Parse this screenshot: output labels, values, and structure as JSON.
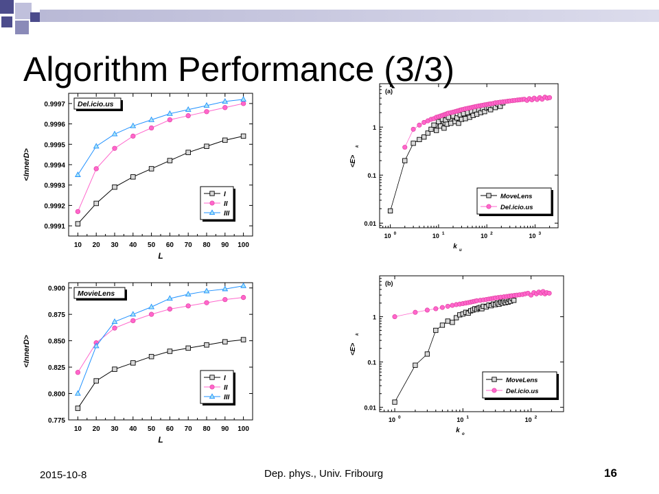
{
  "slide": {
    "title": "Algorithm Performance (3/3)",
    "footer_date": "2015-10-8",
    "footer_center": "Dep. phys.,  Univ. Fribourg",
    "page_number": "16"
  },
  "colors": {
    "header_band": "#a7a7c9",
    "square_dark": "#4c4c8c",
    "square_mid": "#8a8ab8",
    "square_light": "#c0c0dc",
    "black_series": "#000000",
    "pink_series": "#ff66cc",
    "blue_series": "#1e90ff",
    "cyan_fill": "#a8e4f4"
  },
  "chart_data": [
    {
      "type": "line",
      "panel": "top-left",
      "title": "Del.icio.us",
      "xlabel": "L",
      "ylabel": "<InnerD>",
      "x": [
        10,
        20,
        30,
        40,
        50,
        60,
        70,
        80,
        90,
        100
      ],
      "xlim": [
        5,
        105
      ],
      "ylim": [
        0.99905,
        0.99975
      ],
      "xticks": [
        10,
        20,
        30,
        40,
        50,
        60,
        70,
        80,
        90,
        100
      ],
      "yticks": [
        0.9991,
        0.9992,
        0.9993,
        0.9994,
        0.9995,
        0.9996,
        0.9997
      ],
      "ytick_labels": [
        "0.9991",
        "0.9992",
        "0.9993",
        "0.9994",
        "0.9995",
        "0.9996",
        "0.9997"
      ],
      "legend": "bottom-right",
      "series": [
        {
          "name": "I",
          "marker": "square",
          "values": [
            0.99911,
            0.99921,
            0.99929,
            0.99934,
            0.99938,
            0.99942,
            0.99946,
            0.99949,
            0.99952,
            0.99954
          ]
        },
        {
          "name": "II",
          "marker": "circle",
          "values": [
            0.99917,
            0.99938,
            0.99948,
            0.99954,
            0.99958,
            0.99962,
            0.99964,
            0.99966,
            0.99968,
            0.9997
          ]
        },
        {
          "name": "III",
          "marker": "triangle",
          "values": [
            0.99935,
            0.99949,
            0.99955,
            0.99959,
            0.99962,
            0.99965,
            0.99967,
            0.99969,
            0.99971,
            0.99972
          ]
        }
      ]
    },
    {
      "type": "line",
      "panel": "bottom-left",
      "title": "MovieLens",
      "xlabel": "L",
      "ylabel": "<InnerD>",
      "x": [
        10,
        20,
        30,
        40,
        50,
        60,
        70,
        80,
        90,
        100
      ],
      "xlim": [
        5,
        105
      ],
      "ylim": [
        0.775,
        0.905
      ],
      "xticks": [
        10,
        20,
        30,
        40,
        50,
        60,
        70,
        80,
        90,
        100
      ],
      "yticks": [
        0.775,
        0.8,
        0.825,
        0.85,
        0.875,
        0.9
      ],
      "ytick_labels": [
        "0.775",
        "0.800",
        "0.825",
        "0.850",
        "0.875",
        "0.900"
      ],
      "legend": "bottom-right",
      "series": [
        {
          "name": "I",
          "marker": "square",
          "values": [
            0.786,
            0.812,
            0.823,
            0.829,
            0.835,
            0.84,
            0.843,
            0.846,
            0.849,
            0.851
          ]
        },
        {
          "name": "II",
          "marker": "circle",
          "values": [
            0.82,
            0.848,
            0.862,
            0.869,
            0.875,
            0.88,
            0.883,
            0.886,
            0.889,
            0.891
          ]
        },
        {
          "name": "III",
          "marker": "triangle",
          "values": [
            0.8,
            0.845,
            0.868,
            0.875,
            0.882,
            0.89,
            0.894,
            0.897,
            0.899,
            0.902
          ]
        }
      ]
    },
    {
      "type": "scatter",
      "panel": "top-right",
      "title": "(a)",
      "xlabel": "k",
      "xlabel_sub": "u",
      "ylabel": "<E>",
      "ylabel_sub": "k",
      "xscale": "log",
      "yscale": "log",
      "xlim": [
        0.6,
        3000
      ],
      "ylim": [
        0.008,
        8
      ],
      "xtick_exponents": [
        0,
        1,
        2,
        3
      ],
      "yticks": [
        0.01,
        0.1,
        1
      ],
      "ytick_labels": [
        "0.01",
        "0.1",
        "1"
      ],
      "legend": "bottom-right",
      "series": [
        {
          "name": "MoveLens",
          "marker": "square",
          "points": [
            [
              1,
              0.018
            ],
            [
              2,
              0.2
            ],
            [
              3,
              0.46
            ],
            [
              4,
              0.55
            ],
            [
              5,
              0.62
            ],
            [
              6,
              0.75
            ],
            [
              7,
              0.9
            ],
            [
              8,
              1.1
            ],
            [
              9,
              0.85
            ],
            [
              10,
              1.3
            ],
            [
              11,
              1.05
            ],
            [
              12,
              1.45
            ],
            [
              13,
              0.95
            ],
            [
              14,
              1.4
            ],
            [
              15,
              1.15
            ],
            [
              16,
              1.6
            ],
            [
              18,
              1.2
            ],
            [
              20,
              1.7
            ],
            [
              22,
              1.3
            ],
            [
              24,
              1.55
            ],
            [
              26,
              1.2
            ],
            [
              28,
              1.8
            ],
            [
              30,
              1.45
            ],
            [
              33,
              1.9
            ],
            [
              36,
              1.5
            ],
            [
              40,
              2.0
            ],
            [
              44,
              1.6
            ],
            [
              48,
              2.1
            ],
            [
              52,
              1.75
            ],
            [
              57,
              2.2
            ],
            [
              62,
              1.85
            ],
            [
              68,
              2.3
            ],
            [
              75,
              2.0
            ],
            [
              82,
              2.4
            ],
            [
              90,
              2.1
            ],
            [
              100,
              2.5
            ],
            [
              110,
              2.6
            ],
            [
              120,
              2.3
            ],
            [
              135,
              2.8
            ],
            [
              150,
              2.55
            ],
            [
              170,
              3.0
            ],
            [
              190,
              2.7
            ],
            [
              215,
              3.2
            ]
          ]
        },
        {
          "name": "Del.icio.us",
          "marker": "circle",
          "points": [
            [
              2,
              0.38
            ],
            [
              3,
              0.9
            ],
            [
              4,
              1.1
            ],
            [
              5,
              1.25
            ],
            [
              6,
              1.35
            ],
            [
              7,
              1.45
            ],
            [
              8,
              1.5
            ],
            [
              9,
              1.6
            ],
            [
              10,
              1.65
            ],
            [
              11,
              1.7
            ],
            [
              12,
              1.75
            ],
            [
              13,
              1.8
            ],
            [
              14,
              1.85
            ],
            [
              15,
              1.9
            ],
            [
              16,
              1.95
            ],
            [
              18,
              2.0
            ],
            [
              20,
              2.05
            ],
            [
              22,
              2.1
            ],
            [
              24,
              2.15
            ],
            [
              26,
              2.2
            ],
            [
              28,
              2.25
            ],
            [
              30,
              2.3
            ],
            [
              33,
              2.35
            ],
            [
              36,
              2.4
            ],
            [
              40,
              2.45
            ],
            [
              44,
              2.5
            ],
            [
              48,
              2.55
            ],
            [
              52,
              2.6
            ],
            [
              57,
              2.65
            ],
            [
              62,
              2.7
            ],
            [
              68,
              2.75
            ],
            [
              75,
              2.8
            ],
            [
              82,
              2.85
            ],
            [
              90,
              2.9
            ],
            [
              100,
              2.95
            ],
            [
              110,
              3.0
            ],
            [
              120,
              3.05
            ],
            [
              135,
              3.1
            ],
            [
              150,
              3.2
            ],
            [
              170,
              3.25
            ],
            [
              190,
              3.3
            ],
            [
              215,
              3.35
            ],
            [
              240,
              3.4
            ],
            [
              270,
              3.45
            ],
            [
              300,
              3.5
            ],
            [
              340,
              3.55
            ],
            [
              380,
              3.6
            ],
            [
              430,
              3.65
            ],
            [
              480,
              3.7
            ],
            [
              540,
              3.75
            ],
            [
              600,
              3.8
            ],
            [
              680,
              3.6
            ],
            [
              760,
              3.9
            ],
            [
              860,
              3.7
            ],
            [
              960,
              4.0
            ],
            [
              1100,
              3.75
            ],
            [
              1250,
              4.1
            ],
            [
              1400,
              3.8
            ],
            [
              1600,
              4.2
            ],
            [
              1800,
              4.0
            ],
            [
              2000,
              4.1
            ]
          ]
        }
      ]
    },
    {
      "type": "scatter",
      "panel": "bottom-right",
      "title": "(b)",
      "xlabel": "k",
      "xlabel_sub": "o",
      "ylabel": "<E>",
      "ylabel_sub": "k",
      "xscale": "log",
      "yscale": "log",
      "xlim": [
        0.6,
        300
      ],
      "ylim": [
        0.008,
        8
      ],
      "xtick_exponents": [
        0,
        1,
        2
      ],
      "yticks": [
        0.01,
        0.1,
        1
      ],
      "ytick_labels": [
        "0.01",
        "0.1",
        "1"
      ],
      "legend": "bottom-right",
      "series": [
        {
          "name": "MoveLens",
          "marker": "square",
          "points": [
            [
              1,
              0.013
            ],
            [
              2,
              0.085
            ],
            [
              3,
              0.15
            ],
            [
              4,
              0.5
            ],
            [
              5,
              0.65
            ],
            [
              6,
              0.8
            ],
            [
              7,
              0.75
            ],
            [
              8,
              0.95
            ],
            [
              9,
              1.1
            ],
            [
              10,
              1.15
            ],
            [
              11,
              1.25
            ],
            [
              12,
              1.2
            ],
            [
              13,
              1.35
            ],
            [
              14,
              1.4
            ],
            [
              15,
              1.5
            ],
            [
              16,
              1.45
            ],
            [
              17,
              1.55
            ],
            [
              18,
              1.6
            ],
            [
              19,
              1.5
            ],
            [
              20,
              1.7
            ],
            [
              22,
              1.65
            ],
            [
              24,
              1.8
            ],
            [
              26,
              1.75
            ],
            [
              28,
              1.9
            ],
            [
              30,
              1.85
            ],
            [
              32,
              2.0
            ],
            [
              34,
              1.9
            ],
            [
              36,
              2.1
            ],
            [
              38,
              2.0
            ],
            [
              40,
              2.2
            ],
            [
              42,
              2.05
            ],
            [
              44,
              2.3
            ],
            [
              46,
              2.1
            ],
            [
              48,
              2.4
            ],
            [
              50,
              2.2
            ],
            [
              53,
              2.5
            ],
            [
              56,
              2.3
            ]
          ]
        },
        {
          "name": "Del.icio.us",
          "marker": "circle",
          "points": [
            [
              1,
              1.0
            ],
            [
              2,
              1.25
            ],
            [
              3,
              1.4
            ],
            [
              4,
              1.5
            ],
            [
              5,
              1.6
            ],
            [
              6,
              1.7
            ],
            [
              7,
              1.78
            ],
            [
              8,
              1.85
            ],
            [
              9,
              1.9
            ],
            [
              10,
              1.95
            ],
            [
              11,
              2.0
            ],
            [
              12,
              2.05
            ],
            [
              13,
              2.1
            ],
            [
              14,
              2.15
            ],
            [
              15,
              2.2
            ],
            [
              16,
              2.25
            ],
            [
              18,
              2.3
            ],
            [
              20,
              2.35
            ],
            [
              22,
              2.4
            ],
            [
              24,
              2.45
            ],
            [
              26,
              2.5
            ],
            [
              28,
              2.55
            ],
            [
              30,
              2.6
            ],
            [
              33,
              2.65
            ],
            [
              36,
              2.7
            ],
            [
              40,
              2.75
            ],
            [
              44,
              2.8
            ],
            [
              48,
              2.85
            ],
            [
              52,
              2.9
            ],
            [
              57,
              2.95
            ],
            [
              62,
              3.0
            ],
            [
              68,
              3.05
            ],
            [
              75,
              3.1
            ],
            [
              82,
              3.2
            ],
            [
              90,
              3.3
            ],
            [
              100,
              3.0
            ],
            [
              110,
              3.4
            ],
            [
              120,
              3.2
            ],
            [
              130,
              3.5
            ],
            [
              140,
              3.3
            ],
            [
              150,
              3.6
            ],
            [
              160,
              3.2
            ],
            [
              170,
              3.4
            ],
            [
              185,
              3.3
            ]
          ]
        }
      ]
    }
  ]
}
